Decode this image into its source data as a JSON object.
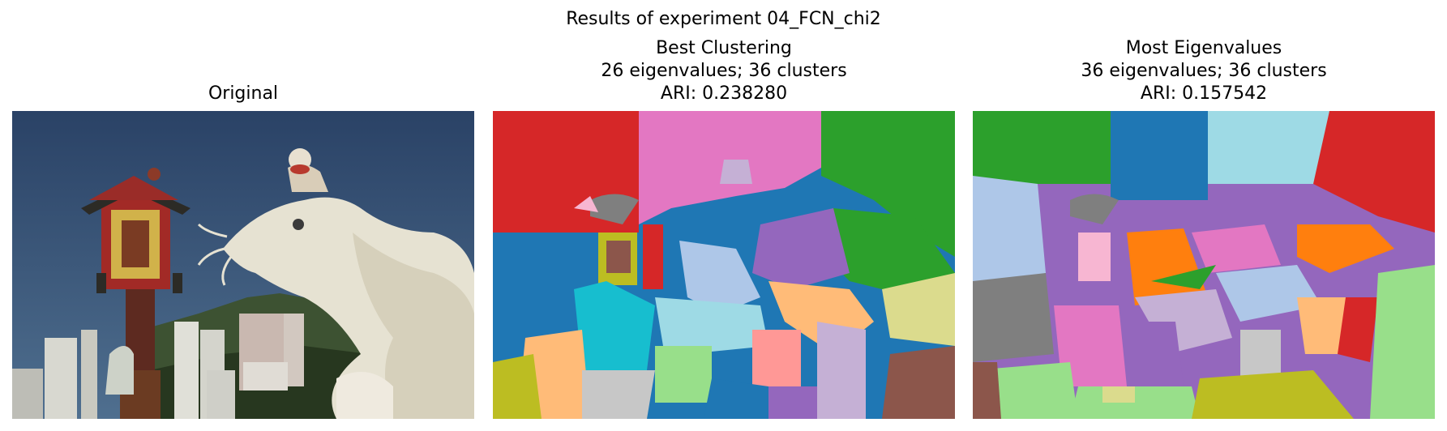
{
  "figure": {
    "suptitle": "Results of experiment 04_FCN_chi2"
  },
  "panels": [
    {
      "title_lines": [
        "Original"
      ]
    },
    {
      "title_lines": [
        "Best Clustering",
        "26 eigenvalues; 36 clusters",
        "ARI: 0.238280"
      ]
    },
    {
      "title_lines": [
        "Most Eigenvalues",
        "36 eigenvalues; 36 clusters",
        "ARI: 0.157542"
      ]
    }
  ],
  "colors": {
    "sky": "#2f4a6e",
    "dragon": "#e8e4d6",
    "red": "#d62728",
    "pink": "#e377c2",
    "green": "#2ca02c",
    "blue": "#1f77b4",
    "light_blue": "#aec7e8",
    "purple": "#9467bd",
    "gray": "#7f7f7f",
    "olive": "#bcbd22",
    "cyan": "#17becf",
    "light_cyan": "#9edae5",
    "orange": "#ff7f0e",
    "light_orange": "#ffbb78",
    "light_green": "#98df8a",
    "salmon": "#ff9896",
    "lavender": "#c5b0d5",
    "brown": "#8c564b",
    "light_gray": "#c7c7c7",
    "light_pink": "#f7b6d2",
    "light_olive": "#dbdb8d"
  }
}
